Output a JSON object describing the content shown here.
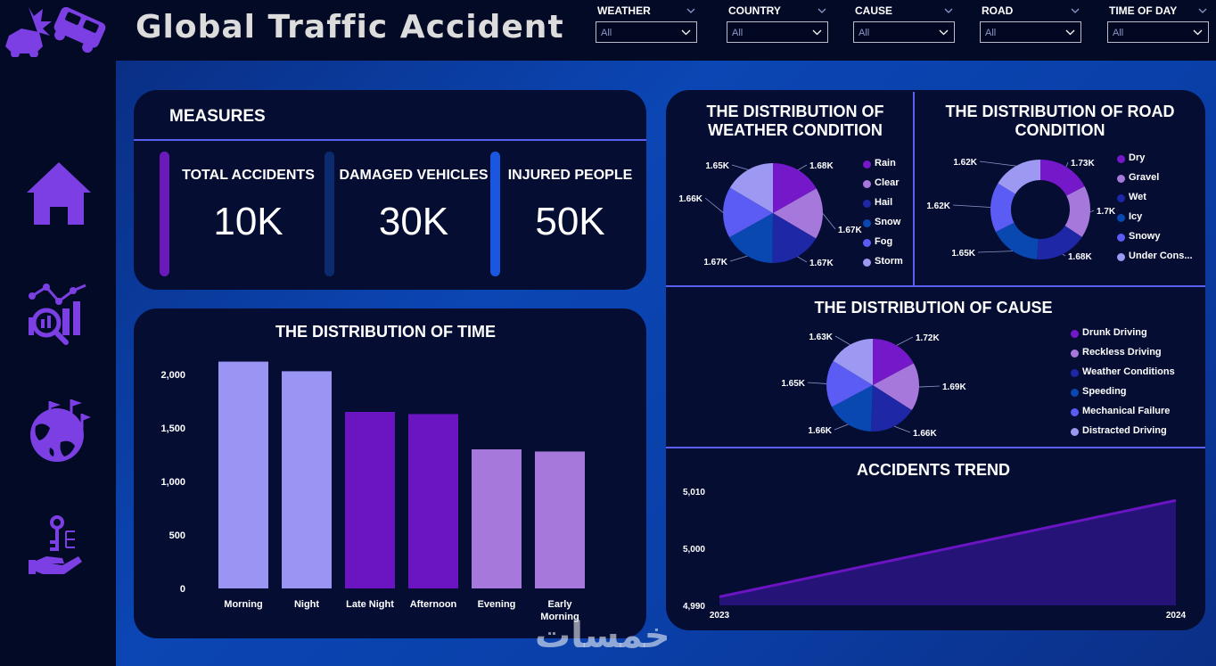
{
  "header": {
    "title": "Global Traffic Accident",
    "filters": [
      {
        "label": "WEATHER",
        "value": "All"
      },
      {
        "label": "COUNTRY",
        "value": "All"
      },
      {
        "label": "CAUSE",
        "value": "All"
      },
      {
        "label": "ROAD",
        "value": "All"
      },
      {
        "label": "TIME OF DAY",
        "value": "All"
      }
    ]
  },
  "sidebar": {
    "items": [
      {
        "name": "home-icon"
      },
      {
        "name": "analytics-icon"
      },
      {
        "name": "globe-icon"
      },
      {
        "name": "hand-key-icon"
      }
    ]
  },
  "measures": {
    "title": "MEASURES",
    "kpis": [
      {
        "label": "TOTAL ACCIDENTS",
        "value": "10K",
        "color": "#6a1ab8"
      },
      {
        "label": "DAMAGED VEHICLES",
        "value": "30K",
        "color": "#0c2a6e"
      },
      {
        "label": "INJURED PEOPLE",
        "value": "50K",
        "color": "#1a56e0"
      }
    ]
  },
  "colors": {
    "bar_light": "#9a94f2",
    "bar_purple": "#6a14c2",
    "bar_lavender": "#a778db",
    "accent_line": "#5b5ff0",
    "panel": "#050d33"
  },
  "chart_data": [
    {
      "id": "time",
      "type": "bar",
      "title": "THE DISTRIBUTION OF TIME",
      "categories": [
        "Morning",
        "Night",
        "Late Night",
        "Afternoon",
        "Evening",
        "Early Morning"
      ],
      "values": [
        2120,
        2030,
        1650,
        1630,
        1300,
        1280
      ],
      "colors": [
        "#9a94f2",
        "#9a94f2",
        "#6a14c2",
        "#6a14c2",
        "#a778db",
        "#a778db"
      ],
      "ytick_labels": [
        "0",
        "500",
        "1,000",
        "1,500",
        "2,000"
      ],
      "yticks": [
        0,
        500,
        1000,
        1500,
        2000
      ],
      "ylim": [
        0,
        2150
      ],
      "xlabel": "",
      "ylabel": ""
    },
    {
      "id": "weather",
      "type": "pie",
      "title": "THE DISTRIBUTION OF WEATHER CONDITION",
      "categories": [
        "Rain",
        "Clear",
        "Hail",
        "Snow",
        "Fog",
        "Storm"
      ],
      "values": [
        1.68,
        1.67,
        1.67,
        1.67,
        1.66,
        1.65
      ],
      "labels": [
        "1.68K",
        "1.67K",
        "1.67K",
        "1.67K",
        "1.66K",
        "1.65K"
      ],
      "colors": [
        "#7418c9",
        "#a778db",
        "#1e27a6",
        "#0848b0",
        "#5b5cf4",
        "#9d98f2"
      ]
    },
    {
      "id": "road",
      "type": "pie",
      "donut": true,
      "title": "THE DISTRIBUTION OF ROAD CONDITION",
      "categories": [
        "Dry",
        "Gravel",
        "Wet",
        "Icy",
        "Snowy",
        "Under Cons..."
      ],
      "values": [
        1.73,
        1.7,
        1.68,
        1.65,
        1.62,
        1.62
      ],
      "labels": [
        "1.73K",
        "1.7K",
        "1.68K",
        "1.65K",
        "1.62K",
        "1.62K"
      ],
      "colors": [
        "#7418c9",
        "#a778db",
        "#1e27a6",
        "#0848b0",
        "#5b5cf4",
        "#9d98f2"
      ]
    },
    {
      "id": "cause",
      "type": "pie",
      "title": "THE DISTRIBUTION OF CAUSE",
      "categories": [
        "Drunk Driving",
        "Reckless Driving",
        "Weather Conditions",
        "Speeding",
        "Mechanical Failure",
        "Distracted Driving"
      ],
      "values": [
        1.72,
        1.69,
        1.66,
        1.66,
        1.65,
        1.63
      ],
      "labels": [
        "1.72K",
        "1.69K",
        "1.66K",
        "1.66K",
        "1.65K",
        "1.63K"
      ],
      "colors": [
        "#7418c9",
        "#a778db",
        "#1e27a6",
        "#0848b0",
        "#5b5cf4",
        "#9d98f2"
      ]
    },
    {
      "id": "trend",
      "type": "area",
      "title": "ACCIDENTS TREND",
      "x": [
        "2023",
        "2024"
      ],
      "values": [
        4991.5,
        5008.4
      ],
      "ytick_labels": [
        "4,990",
        "5,000",
        "5,010"
      ],
      "yticks": [
        4990,
        5000,
        5010
      ],
      "ylim": [
        4990,
        5010
      ],
      "color": "#6a14c2"
    }
  ],
  "watermark": "خمسات"
}
